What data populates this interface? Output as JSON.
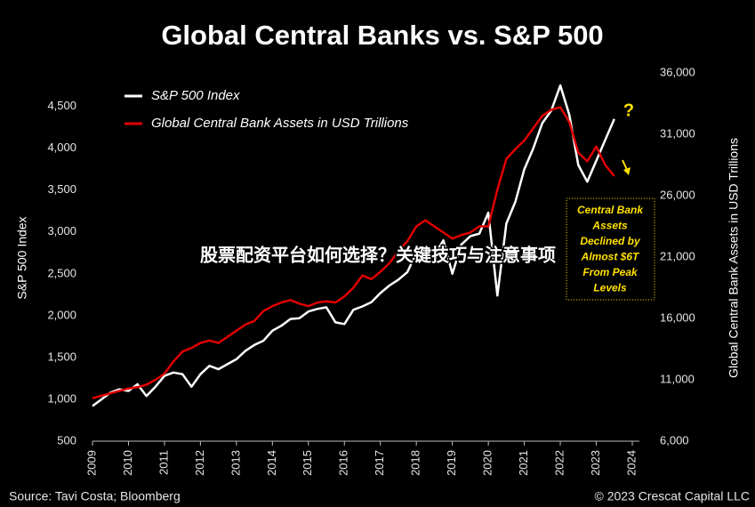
{
  "chart_data": {
    "type": "line",
    "title": "Global Central Banks vs. S&P 500",
    "y_label": "S&P 500 Index",
    "y2_label": "Global Central Bank Assets in USD Trillions",
    "x": [
      2009,
      2009.25,
      2009.5,
      2009.75,
      2010,
      2010.25,
      2010.5,
      2010.75,
      2011,
      2011.25,
      2011.5,
      2011.75,
      2012,
      2012.25,
      2012.5,
      2012.75,
      2013,
      2013.25,
      2013.5,
      2013.75,
      2014,
      2014.25,
      2014.5,
      2014.75,
      2015,
      2015.25,
      2015.5,
      2015.75,
      2016,
      2016.25,
      2016.5,
      2016.75,
      2017,
      2017.25,
      2017.5,
      2017.75,
      2018,
      2018.25,
      2018.5,
      2018.75,
      2019,
      2019.25,
      2019.5,
      2019.75,
      2020,
      2020.25,
      2020.5,
      2020.75,
      2021,
      2021.25,
      2021.5,
      2021.75,
      2022,
      2022.25,
      2022.5,
      2022.75,
      2023,
      2023.25,
      2023.5
    ],
    "xlim": [
      2009,
      2024
    ],
    "xticks": [
      2009,
      2010,
      2011,
      2012,
      2013,
      2014,
      2015,
      2016,
      2017,
      2018,
      2019,
      2020,
      2021,
      2022,
      2023,
      2024
    ],
    "ylim": [
      500,
      4900
    ],
    "yticks": [
      500,
      {
        "value": 1000,
        "label": "1,000"
      },
      {
        "value": 1500,
        "label": "1,500"
      },
      {
        "value": 2000,
        "label": "2,000"
      },
      {
        "value": 2500,
        "label": "2,500"
      },
      {
        "value": 3000,
        "label": "3,000"
      },
      {
        "value": 3500,
        "label": "3,500"
      },
      {
        "value": 4000,
        "label": "4,000"
      },
      {
        "value": 4500,
        "label": "4,500"
      }
    ],
    "y2lim": [
      6000,
      36000
    ],
    "y2ticks": [
      {
        "value": 6000,
        "label": "6,000"
      },
      {
        "value": 11000,
        "label": "11,000"
      },
      {
        "value": 16000,
        "label": "16,000"
      },
      {
        "value": 21000,
        "label": "21,000"
      },
      {
        "value": 26000,
        "label": "26,000"
      },
      {
        "value": 31000,
        "label": "31,000"
      },
      {
        "value": 36000,
        "label": "36,000"
      }
    ],
    "legend": "upper-left",
    "series": [
      {
        "name": "S&P 500 Index",
        "color": "#ffffff",
        "axis": "y",
        "values": [
          920,
          1000,
          1080,
          1120,
          1100,
          1180,
          1040,
          1150,
          1280,
          1320,
          1300,
          1150,
          1300,
          1400,
          1360,
          1420,
          1480,
          1580,
          1650,
          1700,
          1820,
          1880,
          1960,
          1970,
          2050,
          2080,
          2100,
          1920,
          1900,
          2070,
          2110,
          2160,
          2270,
          2360,
          2430,
          2520,
          2750,
          2640,
          2720,
          2900,
          2500,
          2850,
          2950,
          2980,
          3230,
          2240,
          3100,
          3360,
          3750,
          4000,
          4300,
          4450,
          4750,
          4400,
          3800,
          3600,
          3850,
          4100,
          4350
        ]
      },
      {
        "name": "Global Central Bank Assets in USD Trillions",
        "color": "#e00000",
        "axis": "y2",
        "values": [
          9500,
          9700,
          9900,
          10100,
          10300,
          10400,
          10600,
          11000,
          11500,
          12500,
          13300,
          13600,
          14000,
          14200,
          14000,
          14500,
          15000,
          15500,
          15800,
          16600,
          17000,
          17300,
          17500,
          17200,
          17000,
          17300,
          17400,
          17300,
          17800,
          18500,
          19500,
          19200,
          19800,
          20500,
          21500,
          22300,
          23500,
          24000,
          23500,
          23000,
          22500,
          22800,
          23000,
          23500,
          23500,
          26500,
          29000,
          29800,
          30500,
          31500,
          32500,
          33000,
          33200,
          32000,
          29500,
          28800,
          30000,
          28500,
          27600
        ]
      }
    ],
    "annotations": {
      "question": "?",
      "box_lines": [
        "Central Bank",
        "Assets",
        "Declined by",
        "Almost $6T",
        "From Peak",
        "Levels"
      ]
    }
  },
  "footer": {
    "source": "Source: Tavi Costa; Bloomberg",
    "copyright": "© 2023 Crescat Capital LLC"
  },
  "overlay_text": "股票配资平台如何选择？关键技巧与注意事项"
}
